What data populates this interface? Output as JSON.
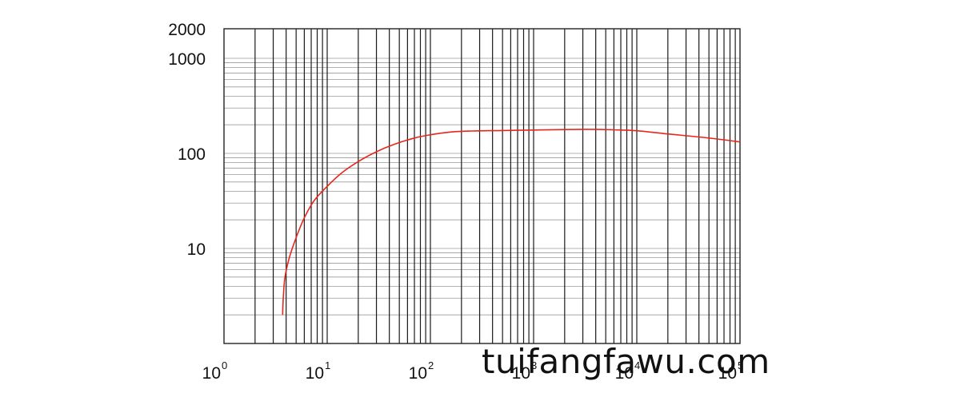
{
  "chart_data": {
    "type": "line",
    "title": "",
    "xlabel": "",
    "ylabel": "",
    "x_scale": "log",
    "y_scale": "log",
    "xlim": [
      1,
      100000
    ],
    "ylim": [
      1,
      2000
    ],
    "grid": true,
    "x_ticks": [
      {
        "base": "10",
        "exp": "0",
        "value": 1
      },
      {
        "base": "10",
        "exp": "1",
        "value": 10
      },
      {
        "base": "10",
        "exp": "2",
        "value": 100
      },
      {
        "base": "10",
        "exp": "3",
        "value": 1000
      },
      {
        "base": "10",
        "exp": "4",
        "value": 10000
      },
      {
        "base": "10",
        "exp": "5",
        "value": 100000
      }
    ],
    "y_ticks": [
      {
        "label": "2000",
        "value": 2000
      },
      {
        "label": "1000",
        "value": 1000
      },
      {
        "label": "100",
        "value": 100
      },
      {
        "label": "10",
        "value": 10
      }
    ],
    "series": [
      {
        "color": "#e8261c",
        "points": [
          [
            3.7,
            2
          ],
          [
            3.75,
            3
          ],
          [
            3.9,
            5
          ],
          [
            4.3,
            8
          ],
          [
            5,
            13
          ],
          [
            6,
            21
          ],
          [
            7.5,
            32
          ],
          [
            10,
            45
          ],
          [
            14,
            63
          ],
          [
            20,
            82
          ],
          [
            30,
            104
          ],
          [
            45,
            125
          ],
          [
            70,
            145
          ],
          [
            100,
            157
          ],
          [
            160,
            168
          ],
          [
            250,
            172
          ],
          [
            500,
            174
          ],
          [
            1000,
            176
          ],
          [
            2000,
            178
          ],
          [
            3500,
            179
          ],
          [
            6000,
            177
          ],
          [
            10000,
            173
          ],
          [
            20000,
            160
          ],
          [
            50000,
            145
          ],
          [
            100000,
            132
          ]
        ]
      }
    ]
  },
  "watermark": "tuifangfawu.com"
}
